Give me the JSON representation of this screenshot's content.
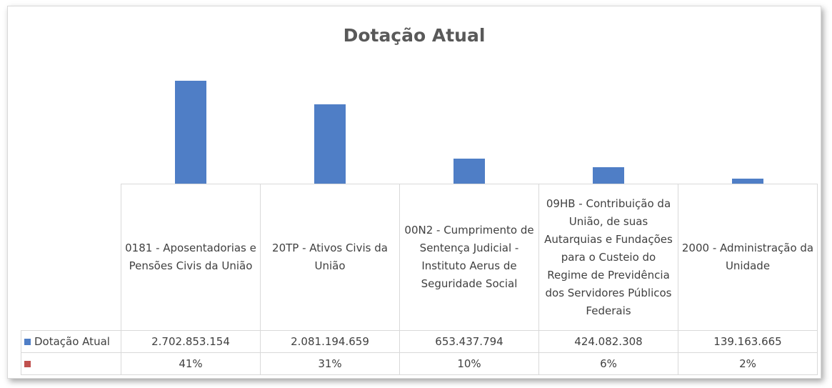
{
  "chart_data": {
    "type": "bar",
    "title": "Dotação Atual",
    "categories": [
      "0181 - Aposentadorias e Pensões Civis da União",
      "20TP - Ativos Civis da União",
      "00N2 - Cumprimento de Sentença Judicial - Instituto Aerus de Seguridade Social",
      "09HB - Contribuição da União, de suas Autarquias e Fundações para o Custeio do Regime de Previdência dos Servidores Públicos Federais",
      "2000 - Administração da Unidade"
    ],
    "series": [
      {
        "name": "Dotação Atual",
        "color": "#4f7ec6",
        "values": [
          2702853154,
          2081194659,
          653437794,
          424082308,
          139163665
        ],
        "value_labels": [
          "2.702.853.154",
          "2.081.194.659",
          "653.437.794",
          "424.082.308",
          "139.163.665"
        ]
      },
      {
        "color": "#c0504d",
        "values": [
          41,
          31,
          10,
          6,
          2
        ],
        "value_labels": [
          "41%",
          "31%",
          "10%",
          "6%",
          "2%"
        ]
      }
    ],
    "ylim": [
      0,
      3000000000
    ],
    "data_table": true
  }
}
